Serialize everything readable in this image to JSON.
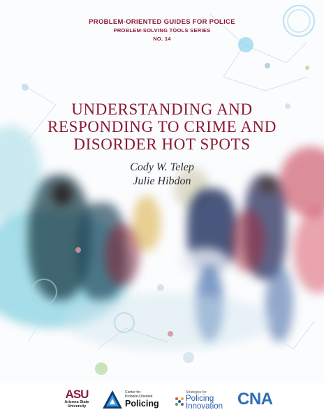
{
  "series": {
    "title": "PROBLEM-ORIENTED GUIDES FOR POLICE",
    "subtitle": "PROBLEM-SOLVING TOOLS SERIES",
    "number": "NO. 14"
  },
  "title_lines": [
    "UNDERSTANDING AND",
    "RESPONDING TO CRIME AND",
    "DISORDER HOT SPOTS"
  ],
  "authors": [
    "Cody W. Telep",
    "Julie Hibdon"
  ],
  "logos": {
    "asu": {
      "mark": "ASU",
      "name_line1": "Arizona State",
      "name_line2": "University"
    },
    "cpop": {
      "small_line1": "Center for",
      "small_line2": "Problem-Oriented",
      "big": "Policing"
    },
    "spi": {
      "small": "Strategies for",
      "line1": "Policing",
      "line2": "Innovation"
    },
    "cna": {
      "text": "CNA"
    }
  },
  "colors": {
    "title": "#8b1a32",
    "asu": "#8c1d40",
    "cna": "#2e6db4",
    "spi": "#2a5ba8"
  },
  "cover_image": "blurred-crowd-walking-photo"
}
